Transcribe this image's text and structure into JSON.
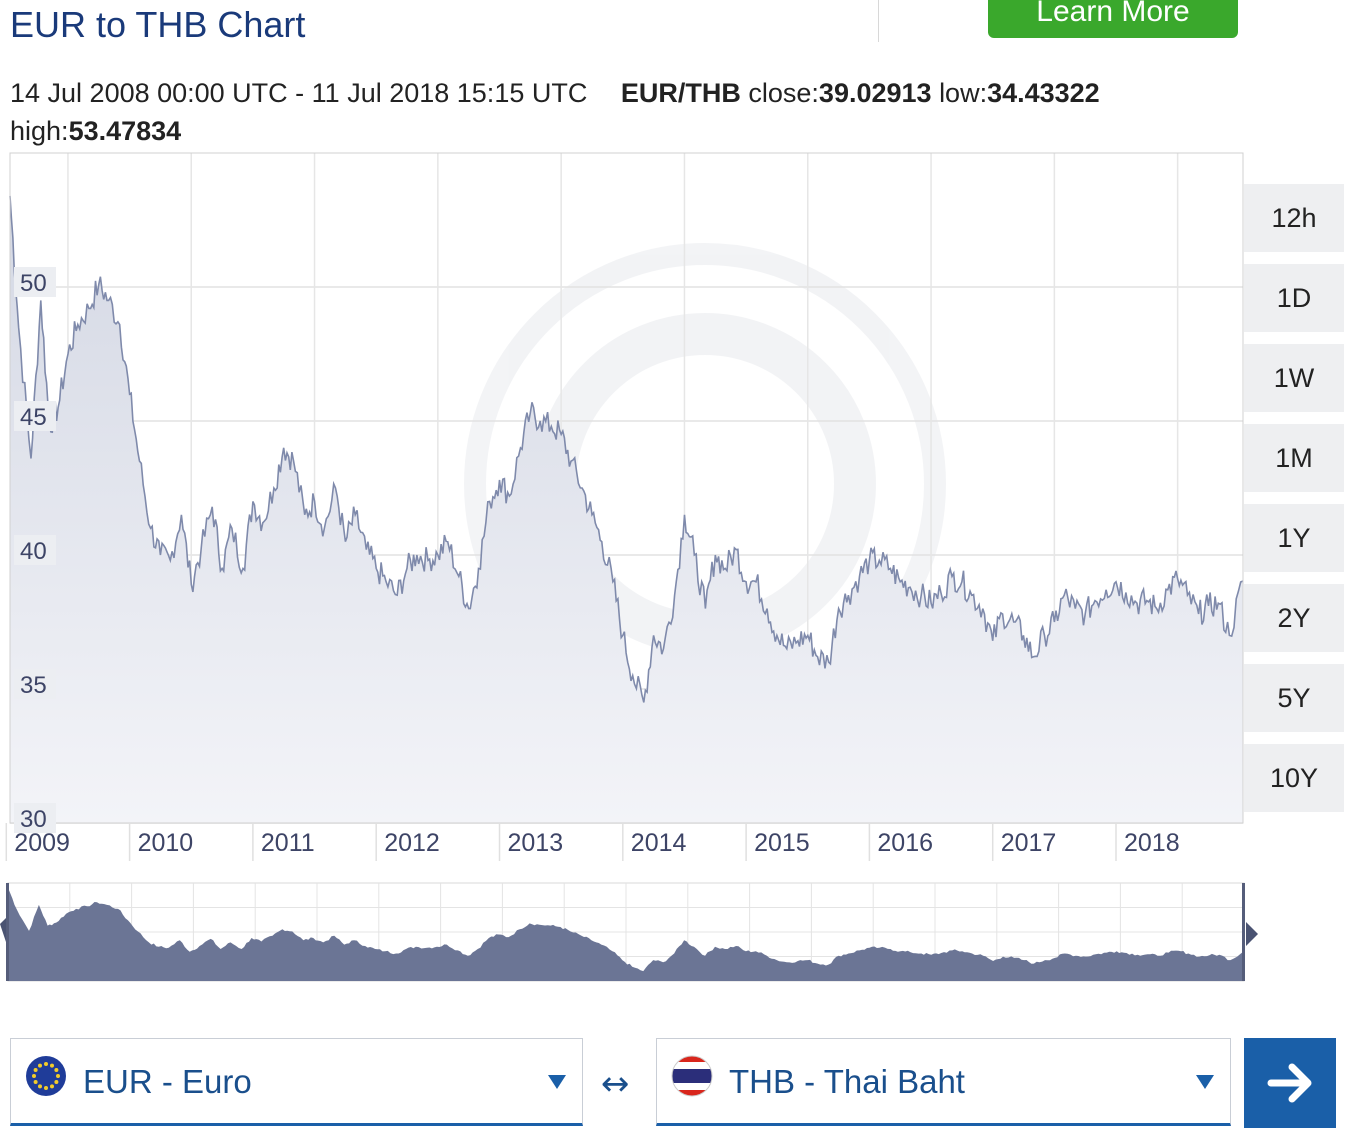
{
  "header": {
    "title": "EUR to THB Chart",
    "cta_label": "Learn More"
  },
  "summary": {
    "range": "14 Jul 2008 00:00 UTC - 11 Jul 2018 15:15 UTC",
    "pair": "EUR/THB",
    "close_label": "close:",
    "close_value": "39.02913",
    "low_label": "low:",
    "low_value": "34.43322",
    "high_label": "high:",
    "high_value": "53.47834"
  },
  "timeframes": [
    "12h",
    "1D",
    "1W",
    "1M",
    "1Y",
    "2Y",
    "5Y",
    "10Y"
  ],
  "selectors": {
    "from_label": "EUR - Euro",
    "to_label": "THB - Thai Baht",
    "swap_symbol": "↔"
  },
  "colors": {
    "title": "#1a3a7a",
    "line": "#7f8aab",
    "area_fill": "#d4d8e4",
    "navigator_fill": "#6b7595",
    "cta": "#3aa82c",
    "primary": "#1a5fa8"
  },
  "icons": {
    "go": "arrow-right-icon",
    "from_flag": "eu-flag-icon",
    "to_flag": "thailand-flag-icon"
  },
  "chart_data": {
    "type": "area",
    "title": "",
    "xlabel": "",
    "ylabel": "",
    "x_ticks": [
      "2009",
      "2010",
      "2011",
      "2012",
      "2013",
      "2014",
      "2015",
      "2016",
      "2017",
      "2018"
    ],
    "y_ticks": [
      30,
      35,
      40,
      45,
      50
    ],
    "ylim": [
      30,
      55
    ],
    "xlim": [
      2008.53,
      2018.53
    ],
    "grid": true,
    "legend": "none",
    "series": [
      {
        "x": [
          2008.53,
          2008.6,
          2008.7,
          2008.78,
          2008.85,
          2008.92,
          2009.0,
          2009.08,
          2009.17,
          2009.25,
          2009.33,
          2009.42,
          2009.5,
          2009.58,
          2009.67,
          2009.75,
          2009.83,
          2009.92,
          2010.0,
          2010.08,
          2010.17,
          2010.25,
          2010.33,
          2010.42,
          2010.5,
          2010.58,
          2010.67,
          2010.75,
          2010.83,
          2010.92,
          2011.0,
          2011.08,
          2011.17,
          2011.25,
          2011.33,
          2011.42,
          2011.5,
          2011.58,
          2011.67,
          2011.75,
          2011.83,
          2011.92,
          2012.0,
          2012.08,
          2012.17,
          2012.25,
          2012.33,
          2012.42,
          2012.5,
          2012.58,
          2012.67,
          2012.75,
          2012.83,
          2012.92,
          2013.0,
          2013.08,
          2013.17,
          2013.25,
          2013.33,
          2013.42,
          2013.5,
          2013.58,
          2013.67,
          2013.75,
          2013.83,
          2013.92,
          2014.0,
          2014.08,
          2014.17,
          2014.25,
          2014.33,
          2014.42,
          2014.5,
          2014.58,
          2014.67,
          2014.75,
          2014.83,
          2014.92,
          2015.0,
          2015.08,
          2015.17,
          2015.25,
          2015.33,
          2015.42,
          2015.5,
          2015.58,
          2015.67,
          2015.75,
          2015.83,
          2015.92,
          2016.0,
          2016.08,
          2016.17,
          2016.25,
          2016.33,
          2016.42,
          2016.5,
          2016.58,
          2016.67,
          2016.75,
          2016.83,
          2016.92,
          2017.0,
          2017.08,
          2017.17,
          2017.25,
          2017.33,
          2017.42,
          2017.5,
          2017.58,
          2017.67,
          2017.75,
          2017.83,
          2017.92,
          2018.0,
          2018.08,
          2018.17,
          2018.25,
          2018.33,
          2018.42,
          2018.53
        ],
        "y": [
          53.4,
          48.5,
          43.6,
          49.5,
          44.8,
          45.5,
          47.5,
          48.6,
          49.2,
          50.1,
          49.5,
          48.6,
          46.0,
          43.5,
          41.0,
          40.0,
          39.8,
          41.5,
          38.9,
          40.2,
          41.8,
          39.5,
          41.0,
          39.5,
          42.0,
          41.2,
          42.5,
          44.0,
          43.5,
          41.5,
          42.0,
          41.0,
          42.5,
          40.5,
          41.5,
          40.2,
          39.5,
          39.0,
          38.5,
          39.5,
          40.0,
          39.8,
          40.0,
          40.5,
          39.2,
          38.0,
          39.5,
          42.0,
          42.8,
          42.2,
          44.0,
          45.3,
          45.0,
          44.8,
          44.5,
          43.5,
          42.5,
          41.5,
          40.5,
          39.0,
          37.0,
          35.5,
          34.5,
          37.0,
          36.5,
          38.5,
          41.5,
          40.0,
          38.0,
          40.0,
          39.5,
          40.2,
          39.0,
          39.0,
          38.0,
          37.0,
          36.5,
          36.8,
          37.0,
          36.2,
          36.0,
          38.0,
          38.5,
          39.2,
          39.8,
          39.8,
          39.5,
          39.0,
          38.8,
          38.5,
          38.2,
          38.6,
          39.2,
          39.0,
          38.5,
          38.0,
          36.8,
          37.8,
          37.5,
          37.0,
          36.2,
          37.0,
          37.5,
          38.5,
          38.0,
          37.8,
          38.3,
          38.7,
          39.0,
          38.6,
          38.2,
          38.3,
          38.0,
          38.7,
          39.1,
          38.5,
          37.8,
          38.1,
          38.2,
          37.0,
          39.03
        ]
      }
    ]
  }
}
